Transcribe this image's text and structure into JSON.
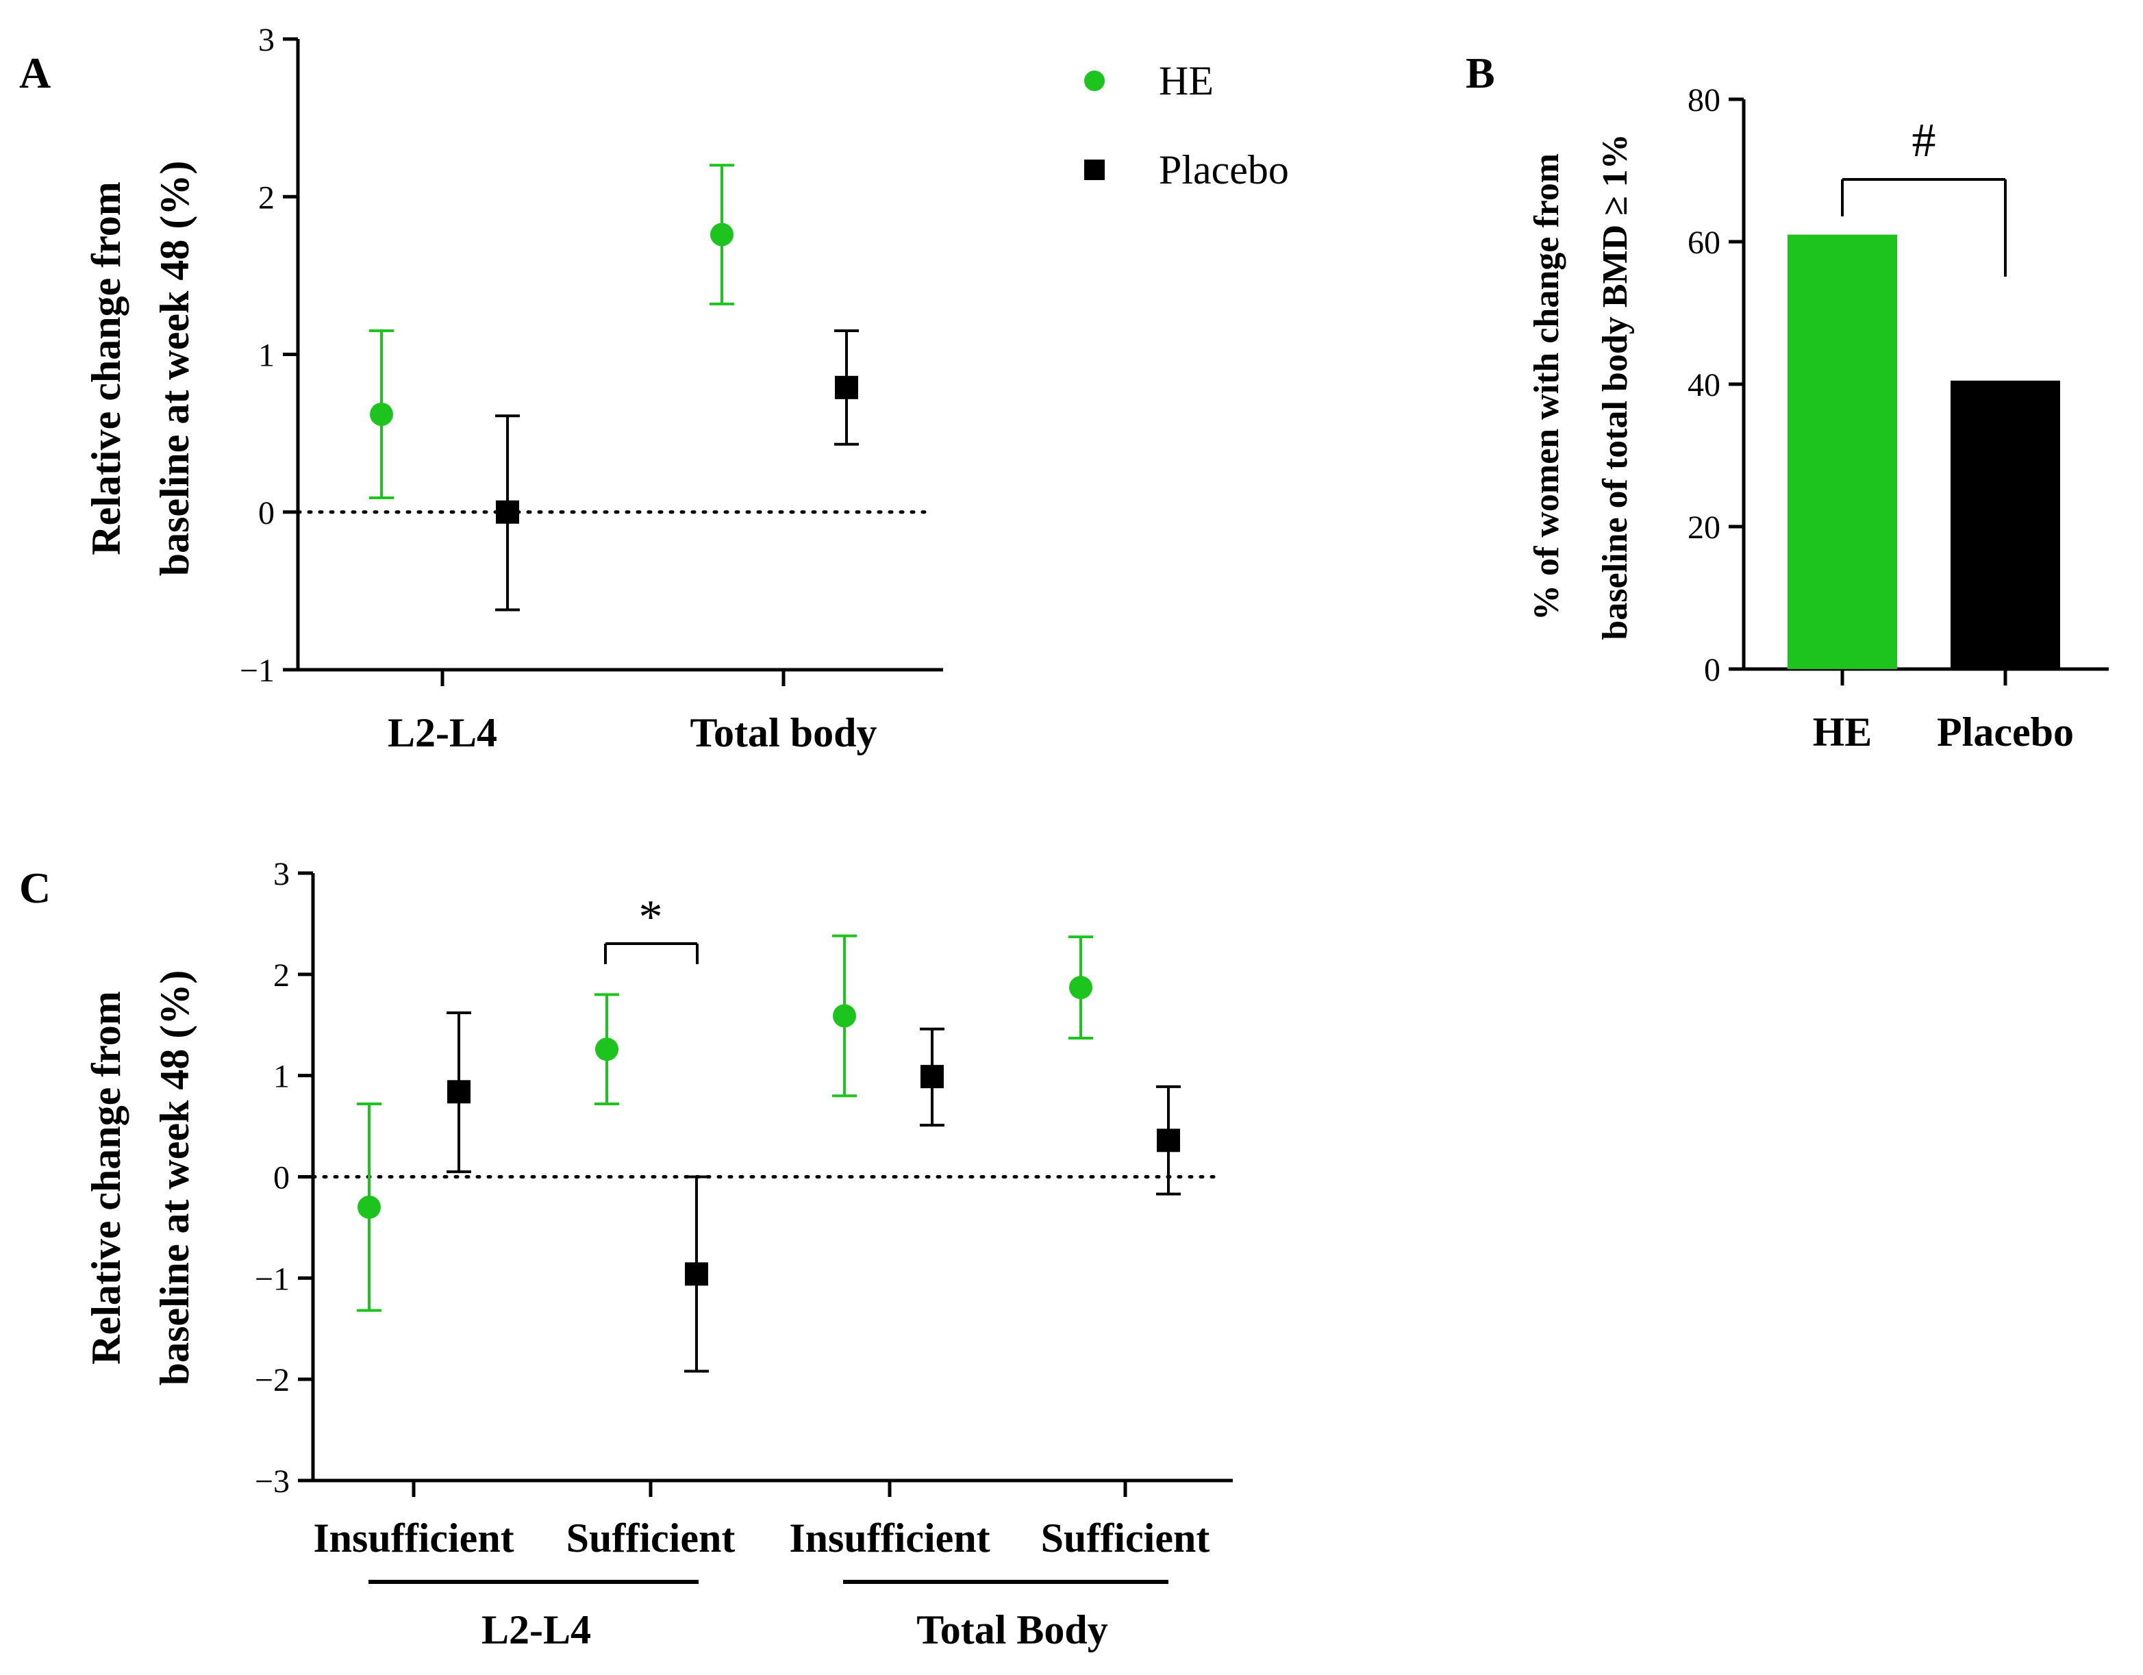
{
  "colors": {
    "he": "#1ec41e",
    "placebo": "#000000",
    "axis": "#000000"
  },
  "legend": [
    {
      "label": "HE",
      "marker": "circle",
      "color": "#1ec41e"
    },
    {
      "label": "Placebo",
      "marker": "square",
      "color": "#000000"
    }
  ],
  "chart_data": [
    {
      "panel": "A",
      "type": "scatter",
      "ylabel_line1": "Relative change from",
      "ylabel_line2": "baseline at week 48 (%)",
      "ylim": [
        -1,
        3
      ],
      "yticks": [
        "−1",
        "0",
        "1",
        "2",
        "3"
      ],
      "categories": [
        "L2-L4",
        "Total body"
      ],
      "reference_line": 0,
      "series": [
        {
          "name": "HE",
          "means": [
            0.62,
            1.76
          ],
          "lower": [
            0.09,
            1.32
          ],
          "upper": [
            1.15,
            2.2
          ]
        },
        {
          "name": "Placebo",
          "means": [
            0.0,
            0.79
          ],
          "lower": [
            -0.62,
            0.43
          ],
          "upper": [
            0.61,
            1.15
          ]
        }
      ]
    },
    {
      "panel": "B",
      "type": "bar",
      "ylabel_line1": "% of women with change from",
      "ylabel_line2": "baseline of total body BMD ≥ 1%",
      "ylim": [
        0,
        80
      ],
      "yticks": [
        "0",
        "20",
        "40",
        "60",
        "80"
      ],
      "categories": [
        "HE",
        "Placebo"
      ],
      "values": [
        61,
        40.5
      ],
      "annotation": "#"
    },
    {
      "panel": "C",
      "type": "scatter",
      "ylabel_line1": "Relative change from",
      "ylabel_line2": "baseline at week 48 (%)",
      "ylim": [
        -3,
        3
      ],
      "yticks": [
        "−3",
        "−2",
        "−1",
        "0",
        "1",
        "2",
        "3"
      ],
      "categories": [
        "Insufficient",
        "Sufficient",
        "Insufficient",
        "Sufficient"
      ],
      "groups": [
        "L2-L4",
        "Total Body"
      ],
      "reference_line": 0,
      "annotation": "*",
      "series": [
        {
          "name": "HE",
          "means": [
            -0.3,
            1.26,
            1.59,
            1.87
          ],
          "lower": [
            -1.32,
            0.72,
            0.8,
            1.37
          ],
          "upper": [
            0.72,
            1.8,
            2.38,
            2.37
          ]
        },
        {
          "name": "Placebo",
          "means": [
            0.84,
            -0.96,
            0.99,
            0.36
          ],
          "lower": [
            0.05,
            -1.92,
            0.51,
            -0.17
          ],
          "upper": [
            1.62,
            0.0,
            1.46,
            0.89
          ]
        }
      ]
    }
  ]
}
